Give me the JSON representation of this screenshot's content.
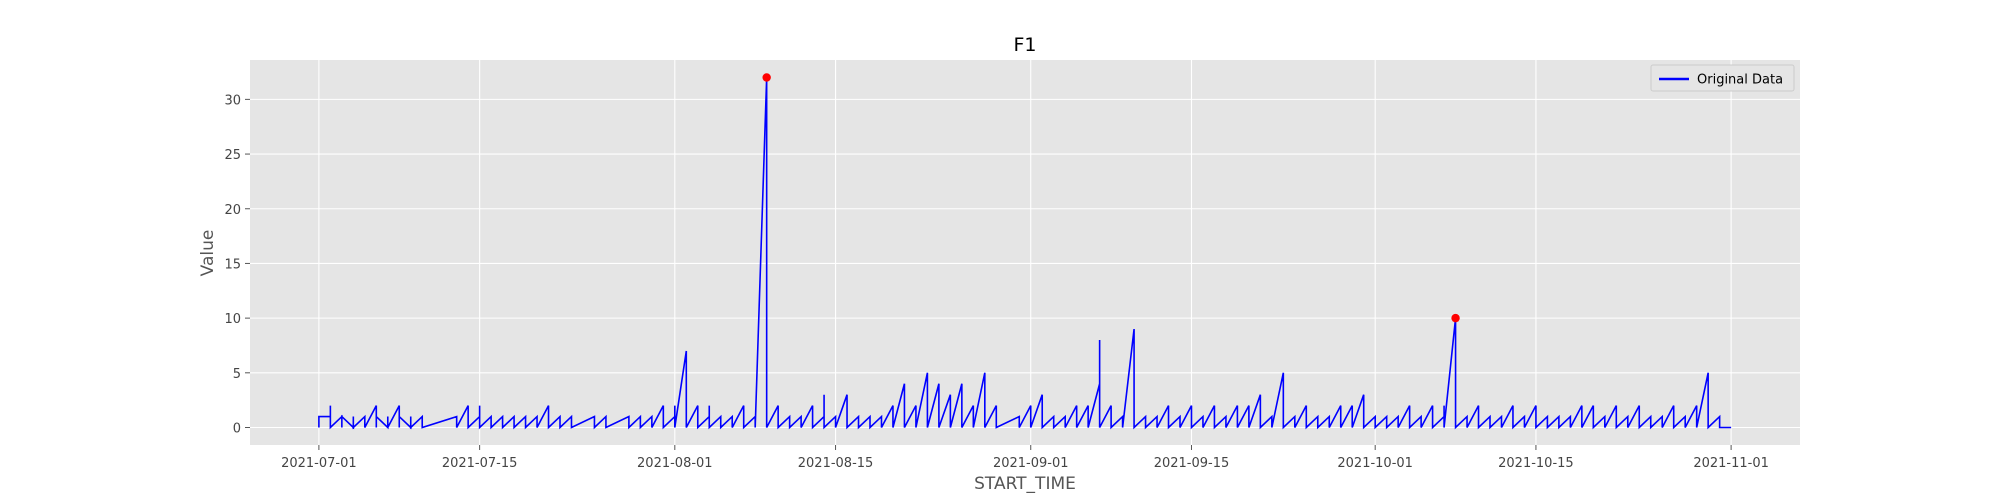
{
  "chart_data": {
    "type": "line",
    "title": "F1",
    "xlabel": "START_TIME",
    "ylabel": "Value",
    "x_range": [
      "2021-06-25",
      "2021-11-07"
    ],
    "ylim": [
      -1.6,
      33.6
    ],
    "grid": true,
    "legend_position": "top-right",
    "x_ticks": [
      "2021-07-01",
      "2021-07-15",
      "2021-08-01",
      "2021-08-15",
      "2021-09-01",
      "2021-09-15",
      "2021-10-01",
      "2021-10-15",
      "2021-11-01"
    ],
    "y_ticks": [
      0,
      5,
      10,
      15,
      20,
      25,
      30
    ],
    "colors": {
      "line": "#0000ff",
      "marker": "#ff0000",
      "plot_background": "#e5e5e5",
      "grid": "#ffffff"
    },
    "series": [
      {
        "name": "Original Data",
        "points": [
          [
            "2021-07-01",
            0
          ],
          [
            "2021-07-01",
            0
          ],
          [
            "2021-07-01",
            1
          ],
          [
            "2021-07-02",
            1
          ],
          [
            "2021-07-02",
            0
          ],
          [
            "2021-07-02",
            2
          ],
          [
            "2021-07-02",
            0
          ],
          [
            "2021-07-03",
            1
          ],
          [
            "2021-07-03",
            0
          ],
          [
            "2021-07-03",
            1
          ],
          [
            "2021-07-04",
            0
          ],
          [
            "2021-07-04",
            1
          ],
          [
            "2021-07-04",
            0
          ],
          [
            "2021-07-05",
            1
          ],
          [
            "2021-07-05",
            0
          ],
          [
            "2021-07-06",
            2
          ],
          [
            "2021-07-06",
            0
          ],
          [
            "2021-07-06",
            1
          ],
          [
            "2021-07-07",
            0
          ],
          [
            "2021-07-07",
            1
          ],
          [
            "2021-07-07",
            0
          ],
          [
            "2021-07-08",
            2
          ],
          [
            "2021-07-08",
            0
          ],
          [
            "2021-07-08",
            1
          ],
          [
            "2021-07-09",
            0
          ],
          [
            "2021-07-09",
            1
          ],
          [
            "2021-07-09",
            0
          ],
          [
            "2021-07-10",
            1
          ],
          [
            "2021-07-10",
            0
          ],
          [
            "2021-07-13",
            1
          ],
          [
            "2021-07-13",
            0
          ],
          [
            "2021-07-14",
            2
          ],
          [
            "2021-07-14",
            0
          ],
          [
            "2021-07-15",
            1
          ],
          [
            "2021-07-15",
            0
          ],
          [
            "2021-07-15",
            2
          ],
          [
            "2021-07-15",
            0
          ],
          [
            "2021-07-16",
            1
          ],
          [
            "2021-07-16",
            0
          ],
          [
            "2021-07-17",
            1
          ],
          [
            "2021-07-17",
            0
          ],
          [
            "2021-07-18",
            1
          ],
          [
            "2021-07-18",
            0
          ],
          [
            "2021-07-19",
            1
          ],
          [
            "2021-07-19",
            0
          ],
          [
            "2021-07-20",
            1
          ],
          [
            "2021-07-20",
            0
          ],
          [
            "2021-07-21",
            2
          ],
          [
            "2021-07-21",
            0
          ],
          [
            "2021-07-22",
            1
          ],
          [
            "2021-07-22",
            0
          ],
          [
            "2021-07-23",
            1
          ],
          [
            "2021-07-23",
            0
          ],
          [
            "2021-07-25",
            1
          ],
          [
            "2021-07-25",
            0
          ],
          [
            "2021-07-26",
            1
          ],
          [
            "2021-07-26",
            0
          ],
          [
            "2021-07-28",
            1
          ],
          [
            "2021-07-28",
            0
          ],
          [
            "2021-07-29",
            1
          ],
          [
            "2021-07-29",
            0
          ],
          [
            "2021-07-30",
            1
          ],
          [
            "2021-07-30",
            0
          ],
          [
            "2021-07-31",
            2
          ],
          [
            "2021-07-31",
            0
          ],
          [
            "2021-08-01",
            1
          ],
          [
            "2021-08-01",
            0
          ],
          [
            "2021-08-01",
            2
          ],
          [
            "2021-08-01",
            0
          ],
          [
            "2021-08-02",
            7
          ],
          [
            "2021-08-02",
            0
          ],
          [
            "2021-08-02",
            1
          ],
          [
            "2021-08-02",
            0
          ],
          [
            "2021-08-03",
            2
          ],
          [
            "2021-08-03",
            0
          ],
          [
            "2021-08-04",
            1
          ],
          [
            "2021-08-04",
            0
          ],
          [
            "2021-08-04",
            2
          ],
          [
            "2021-08-04",
            0
          ],
          [
            "2021-08-05",
            1
          ],
          [
            "2021-08-05",
            0
          ],
          [
            "2021-08-06",
            1
          ],
          [
            "2021-08-06",
            0
          ],
          [
            "2021-08-07",
            2
          ],
          [
            "2021-08-07",
            0
          ],
          [
            "2021-08-08",
            1
          ],
          [
            "2021-08-08",
            0
          ],
          [
            "2021-08-09",
            32
          ],
          [
            "2021-08-09",
            0
          ],
          [
            "2021-08-10",
            2
          ],
          [
            "2021-08-10",
            0
          ],
          [
            "2021-08-11",
            1
          ],
          [
            "2021-08-11",
            0
          ],
          [
            "2021-08-12",
            1
          ],
          [
            "2021-08-12",
            0
          ],
          [
            "2021-08-13",
            2
          ],
          [
            "2021-08-13",
            0
          ],
          [
            "2021-08-14",
            1
          ],
          [
            "2021-08-14",
            0
          ],
          [
            "2021-08-14",
            3
          ],
          [
            "2021-08-14",
            0
          ],
          [
            "2021-08-15",
            1
          ],
          [
            "2021-08-15",
            0
          ],
          [
            "2021-08-16",
            3
          ],
          [
            "2021-08-16",
            0
          ],
          [
            "2021-08-17",
            1
          ],
          [
            "2021-08-17",
            0
          ],
          [
            "2021-08-18",
            1
          ],
          [
            "2021-08-18",
            0
          ],
          [
            "2021-08-19",
            1
          ],
          [
            "2021-08-19",
            0
          ],
          [
            "2021-08-20",
            2
          ],
          [
            "2021-08-20",
            0
          ],
          [
            "2021-08-21",
            4
          ],
          [
            "2021-08-21",
            0
          ],
          [
            "2021-08-22",
            2
          ],
          [
            "2021-08-22",
            0
          ],
          [
            "2021-08-23",
            5
          ],
          [
            "2021-08-23",
            0
          ],
          [
            "2021-08-24",
            4
          ],
          [
            "2021-08-24",
            0
          ],
          [
            "2021-08-25",
            3
          ],
          [
            "2021-08-25",
            0
          ],
          [
            "2021-08-26",
            4
          ],
          [
            "2021-08-26",
            0
          ],
          [
            "2021-08-26",
            4
          ],
          [
            "2021-08-26",
            0
          ],
          [
            "2021-08-27",
            2
          ],
          [
            "2021-08-27",
            0
          ],
          [
            "2021-08-28",
            5
          ],
          [
            "2021-08-28",
            0
          ],
          [
            "2021-08-29",
            2
          ],
          [
            "2021-08-29",
            0
          ],
          [
            "2021-08-31",
            1
          ],
          [
            "2021-08-31",
            0
          ],
          [
            "2021-09-01",
            2
          ],
          [
            "2021-09-01",
            0
          ],
          [
            "2021-09-02",
            3
          ],
          [
            "2021-09-02",
            0
          ],
          [
            "2021-09-03",
            1
          ],
          [
            "2021-09-03",
            0
          ],
          [
            "2021-09-04",
            1
          ],
          [
            "2021-09-04",
            0
          ],
          [
            "2021-09-05",
            2
          ],
          [
            "2021-09-05",
            0
          ],
          [
            "2021-09-06",
            2
          ],
          [
            "2021-09-06",
            0
          ],
          [
            "2021-09-07",
            4
          ],
          [
            "2021-09-07",
            0
          ],
          [
            "2021-09-07",
            8
          ],
          [
            "2021-09-07",
            0
          ],
          [
            "2021-09-08",
            2
          ],
          [
            "2021-09-08",
            0
          ],
          [
            "2021-09-09",
            1
          ],
          [
            "2021-09-09",
            0
          ],
          [
            "2021-09-10",
            9
          ],
          [
            "2021-09-10",
            0
          ],
          [
            "2021-09-10",
            5
          ],
          [
            "2021-09-10",
            0
          ],
          [
            "2021-09-11",
            1
          ],
          [
            "2021-09-11",
            0
          ],
          [
            "2021-09-12",
            1
          ],
          [
            "2021-09-12",
            0
          ],
          [
            "2021-09-13",
            2
          ],
          [
            "2021-09-13",
            0
          ],
          [
            "2021-09-14",
            1
          ],
          [
            "2021-09-14",
            0
          ],
          [
            "2021-09-15",
            2
          ],
          [
            "2021-09-15",
            0
          ],
          [
            "2021-09-16",
            1
          ],
          [
            "2021-09-16",
            0
          ],
          [
            "2021-09-17",
            2
          ],
          [
            "2021-09-17",
            0
          ],
          [
            "2021-09-18",
            1
          ],
          [
            "2021-09-18",
            0
          ],
          [
            "2021-09-19",
            2
          ],
          [
            "2021-09-19",
            0
          ],
          [
            "2021-09-20",
            2
          ],
          [
            "2021-09-20",
            0
          ],
          [
            "2021-09-21",
            3
          ],
          [
            "2021-09-21",
            0
          ],
          [
            "2021-09-22",
            1
          ],
          [
            "2021-09-22",
            0
          ],
          [
            "2021-09-23",
            5
          ],
          [
            "2021-09-23",
            0
          ],
          [
            "2021-09-24",
            1
          ],
          [
            "2021-09-24",
            0
          ],
          [
            "2021-09-25",
            2
          ],
          [
            "2021-09-25",
            0
          ],
          [
            "2021-09-26",
            1
          ],
          [
            "2021-09-26",
            0
          ],
          [
            "2021-09-27",
            1
          ],
          [
            "2021-09-27",
            0
          ],
          [
            "2021-09-28",
            2
          ],
          [
            "2021-09-28",
            0
          ],
          [
            "2021-09-29",
            2
          ],
          [
            "2021-09-29",
            0
          ],
          [
            "2021-09-30",
            3
          ],
          [
            "2021-09-30",
            0
          ],
          [
            "2021-10-01",
            1
          ],
          [
            "2021-10-01",
            0
          ],
          [
            "2021-10-02",
            1
          ],
          [
            "2021-10-02",
            0
          ],
          [
            "2021-10-03",
            1
          ],
          [
            "2021-10-03",
            0
          ],
          [
            "2021-10-04",
            2
          ],
          [
            "2021-10-04",
            0
          ],
          [
            "2021-10-05",
            1
          ],
          [
            "2021-10-05",
            0
          ],
          [
            "2021-10-06",
            2
          ],
          [
            "2021-10-06",
            0
          ],
          [
            "2021-10-07",
            1
          ],
          [
            "2021-10-07",
            0
          ],
          [
            "2021-10-07",
            2
          ],
          [
            "2021-10-07",
            0
          ],
          [
            "2021-10-08",
            10
          ],
          [
            "2021-10-08",
            0
          ],
          [
            "2021-10-09",
            1
          ],
          [
            "2021-10-09",
            0
          ],
          [
            "2021-10-10",
            2
          ],
          [
            "2021-10-10",
            0
          ],
          [
            "2021-10-11",
            1
          ],
          [
            "2021-10-11",
            0
          ],
          [
            "2021-10-12",
            1
          ],
          [
            "2021-10-12",
            0
          ],
          [
            "2021-10-13",
            2
          ],
          [
            "2021-10-13",
            0
          ],
          [
            "2021-10-14",
            1
          ],
          [
            "2021-10-14",
            0
          ],
          [
            "2021-10-15",
            2
          ],
          [
            "2021-10-15",
            0
          ],
          [
            "2021-10-16",
            1
          ],
          [
            "2021-10-16",
            0
          ],
          [
            "2021-10-17",
            1
          ],
          [
            "2021-10-17",
            0
          ],
          [
            "2021-10-18",
            1
          ],
          [
            "2021-10-18",
            0
          ],
          [
            "2021-10-19",
            2
          ],
          [
            "2021-10-19",
            0
          ],
          [
            "2021-10-20",
            2
          ],
          [
            "2021-10-20",
            0
          ],
          [
            "2021-10-21",
            1
          ],
          [
            "2021-10-21",
            0
          ],
          [
            "2021-10-22",
            2
          ],
          [
            "2021-10-22",
            0
          ],
          [
            "2021-10-23",
            1
          ],
          [
            "2021-10-23",
            0
          ],
          [
            "2021-10-24",
            2
          ],
          [
            "2021-10-24",
            0
          ],
          [
            "2021-10-25",
            1
          ],
          [
            "2021-10-25",
            0
          ],
          [
            "2021-10-26",
            1
          ],
          [
            "2021-10-26",
            0
          ],
          [
            "2021-10-27",
            2
          ],
          [
            "2021-10-27",
            0
          ],
          [
            "2021-10-28",
            1
          ],
          [
            "2021-10-28",
            0
          ],
          [
            "2021-10-29",
            2
          ],
          [
            "2021-10-29",
            0
          ],
          [
            "2021-10-30",
            5
          ],
          [
            "2021-10-30",
            0
          ],
          [
            "2021-10-31",
            1
          ],
          [
            "2021-10-31",
            0
          ],
          [
            "2021-11-01",
            0
          ]
        ]
      }
    ],
    "highlighted_points": [
      [
        "2021-08-09",
        32
      ],
      [
        "2021-10-08",
        10
      ]
    ]
  }
}
